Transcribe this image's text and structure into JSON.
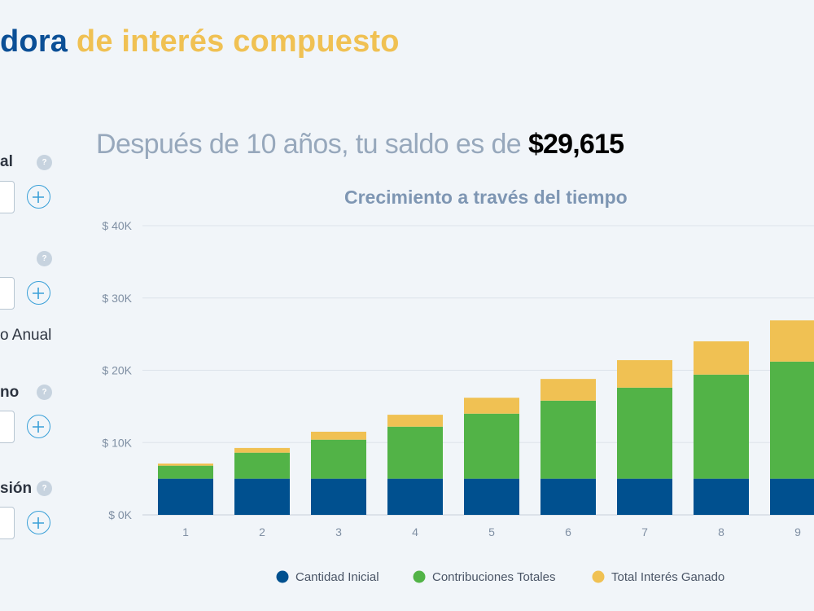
{
  "header": {
    "title_part1": "dora",
    "title_part2": " de interés compuesto"
  },
  "form": {
    "label_1": "al",
    "label_3": "o Anual",
    "label_4": "no",
    "label_5": "sión",
    "help_glyph": "?",
    "plus_icon": "plus-icon",
    "help_icon": "question-icon"
  },
  "summary": {
    "text": "Después de 10 años, tu saldo es de ",
    "amount": "$29,615"
  },
  "colors": {
    "brand_blue": "#0b4f96",
    "brand_yellow": "#f0c153",
    "initial": "#00508f",
    "contributions": "#52b347",
    "interest": "#f0c153",
    "gridline": "#dde3ea"
  },
  "chart_data": {
    "type": "bar",
    "stacked": true,
    "title": "Crecimiento a través del tiempo",
    "categories": [
      "1",
      "2",
      "3",
      "4",
      "5",
      "6",
      "7",
      "8",
      "9"
    ],
    "series": [
      {
        "name": "Cantidad Inicial",
        "color": "#00508f",
        "values": [
          5000,
          5000,
          5000,
          5000,
          5000,
          5000,
          5000,
          5000,
          5000
        ]
      },
      {
        "name": "Contribuciones Totales",
        "color": "#52b347",
        "values": [
          1800,
          3600,
          5400,
          7200,
          9000,
          10800,
          12600,
          14400,
          16200
        ]
      },
      {
        "name": "Total Interés Ganado",
        "color": "#f0c153",
        "values": [
          300,
          650,
          1100,
          1650,
          2200,
          3000,
          3800,
          4600,
          5700
        ]
      }
    ],
    "yticks": [
      0,
      10000,
      20000,
      30000,
      40000
    ],
    "ytick_labels": [
      "$ 0K",
      "$ 10K",
      "$ 20K",
      "$ 30K",
      "$ 40K"
    ],
    "ylim": [
      0,
      40000
    ],
    "grid": true,
    "legend_position": "bottom"
  }
}
